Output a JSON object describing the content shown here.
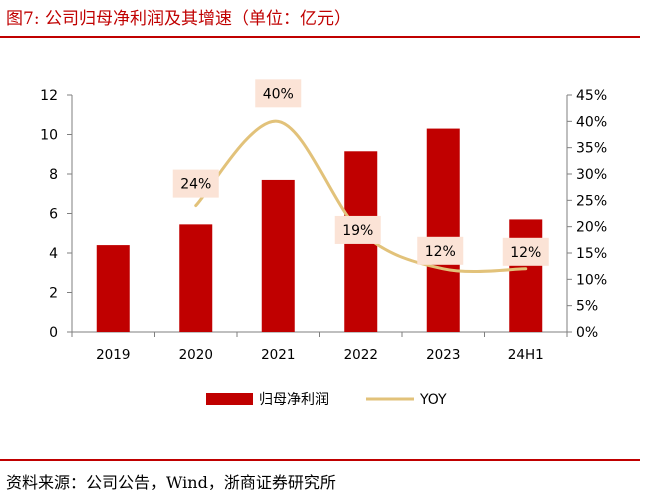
{
  "header": {
    "title": "图7:  公司归母净利润及其增速（单位：亿元）"
  },
  "footer": {
    "source": "资料来源：公司公告，Wind，浙商证券研究所"
  },
  "colors": {
    "accent": "#c00000",
    "bar": "#c00000",
    "line": "#e2c27a",
    "label_bg": "#fbe3d6"
  },
  "chart_data": {
    "type": "bar",
    "title": "",
    "categories": [
      "2019",
      "2020",
      "2021",
      "2022",
      "2023",
      "24H1"
    ],
    "series": [
      {
        "name": "归母净利润",
        "type": "bar",
        "axis": "left",
        "values": [
          4.4,
          5.45,
          7.7,
          9.15,
          10.3,
          5.7
        ]
      },
      {
        "name": "YOY",
        "type": "line",
        "axis": "right",
        "values": [
          null,
          24,
          40,
          19,
          12,
          12
        ],
        "labels": [
          "",
          "24%",
          "40%",
          "19%",
          "12%",
          "12%"
        ]
      }
    ],
    "y_left": {
      "ylim": [
        0,
        12
      ],
      "ticks": [
        "0",
        "2",
        "4",
        "6",
        "8",
        "10",
        "12"
      ]
    },
    "y_right": {
      "ylim": [
        0,
        45
      ],
      "ticks": [
        "0%",
        "5%",
        "10%",
        "15%",
        "20%",
        "25%",
        "30%",
        "35%",
        "40%",
        "45%"
      ]
    },
    "legend": {
      "placement": "bottom-center",
      "entries": [
        "归母净利润",
        "YOY"
      ]
    },
    "grid": false
  }
}
